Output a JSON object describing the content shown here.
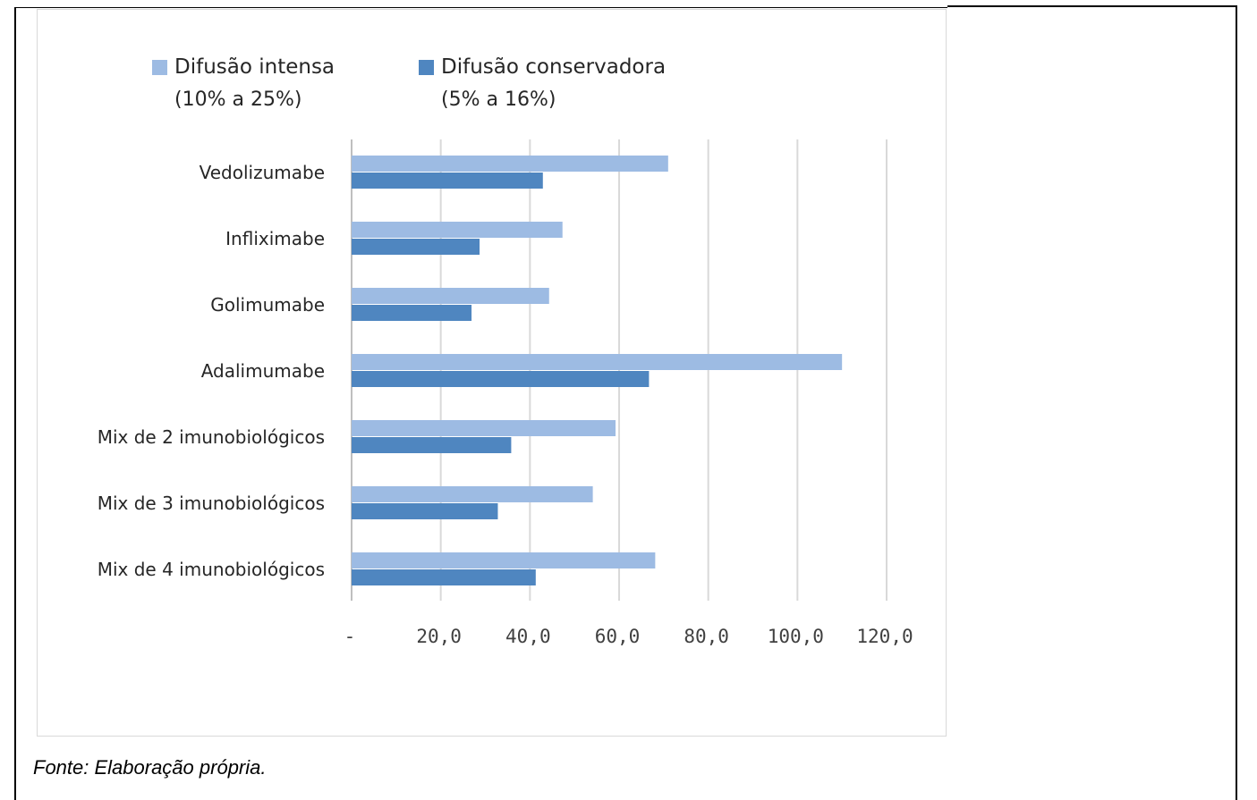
{
  "chart_data": {
    "type": "bar",
    "orientation": "horizontal",
    "categories": [
      "Vedolizumabe",
      "Infliximabe",
      "Golimumabe",
      "Adalimumabe",
      "Mix de 2 imunobiológicos",
      "Mix de 3 imunobiológicos",
      "Mix de 4 imunobiológicos"
    ],
    "series": [
      {
        "name": "Difusão intensa",
        "name_sub": "(10% a 25%)",
        "color": "#9dbbe3",
        "values": [
          71.0,
          47.3,
          44.3,
          110.0,
          59.2,
          54.1,
          68.1
        ]
      },
      {
        "name": "Difusão conservadora",
        "name_sub": "(5% a 16%)",
        "color": "#4f86c0",
        "values": [
          42.9,
          28.7,
          26.9,
          66.7,
          35.8,
          32.8,
          41.3
        ]
      }
    ],
    "xlim": [
      0,
      120
    ],
    "x_ticks": [
      0,
      20,
      40,
      60,
      80,
      100,
      120
    ],
    "x_tick_labels": [
      "-",
      "20,0",
      "40,0",
      "60,0",
      "80,0",
      "100,0",
      "120,0"
    ],
    "grid": true,
    "legend_position": "top"
  },
  "caption": "Fonte: Elaboração própria."
}
